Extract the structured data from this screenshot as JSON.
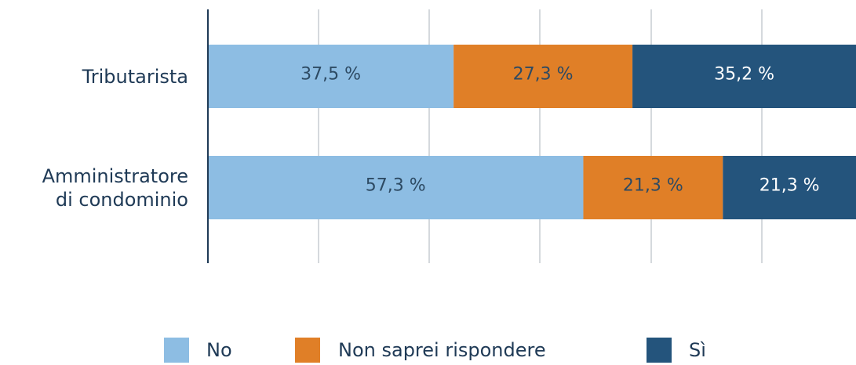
{
  "chart_data": {
    "type": "stacked_barh",
    "categories": [
      "Tributarista",
      "Amministratore\ndi condominio"
    ],
    "xlim": [
      0,
      100
    ],
    "series": [
      {
        "name": "No",
        "color": "#8dbde3",
        "values": [
          37.5,
          57.3
        ],
        "value_labels": [
          "37,5 %",
          "57,3 %"
        ]
      },
      {
        "name": "Non saprei rispondere",
        "color": "#e07f27",
        "values": [
          27.3,
          21.3
        ],
        "value_labels": [
          "27,3 %",
          "21,3 %"
        ]
      },
      {
        "name": "Sì",
        "color": "#24547c",
        "values": [
          35.2,
          21.3
        ],
        "value_labels": [
          "35,2 %",
          "21,3 %"
        ]
      }
    ]
  }
}
